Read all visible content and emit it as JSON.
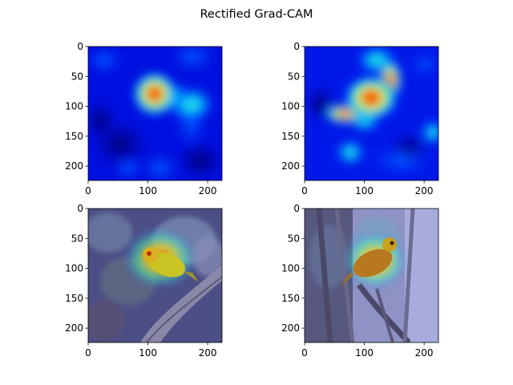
{
  "figure": {
    "title": "Rectified Grad-CAM"
  },
  "panels": [
    {
      "kind": "heatmap",
      "description_icon": "grad-cam-heatmap",
      "hotspot": {
        "x": 112,
        "y": 80
      },
      "x_ticks": [
        "0",
        "100",
        "200"
      ],
      "y_ticks": [
        "0",
        "50",
        "100",
        "150",
        "200"
      ]
    },
    {
      "kind": "heatmap",
      "description_icon": "grad-cam-heatmap",
      "hotspot": {
        "x": 110,
        "y": 85
      },
      "x_ticks": [
        "0",
        "100",
        "200"
      ],
      "y_ticks": [
        "0",
        "50",
        "100",
        "150",
        "200"
      ]
    },
    {
      "kind": "overlay",
      "description_icon": "bird-photo-overlay",
      "hotspot": {
        "x": 110,
        "y": 85
      },
      "x_ticks": [
        "0",
        "100",
        "200"
      ],
      "y_ticks": [
        "0",
        "50",
        "100",
        "150",
        "200"
      ]
    },
    {
      "kind": "overlay",
      "description_icon": "bird-photo-overlay",
      "hotspot": {
        "x": 110,
        "y": 90
      },
      "x_ticks": [
        "0",
        "100",
        "200"
      ],
      "y_ticks": [
        "0",
        "50",
        "100",
        "150",
        "200"
      ]
    }
  ],
  "colors": {
    "jet_low": "#00008f",
    "jet_mid": "#00e0ff",
    "jet_high": "#ff2000",
    "overlay_tint": "#6a6aa8",
    "bird": "#c9c423",
    "branch": "#7a7898"
  }
}
